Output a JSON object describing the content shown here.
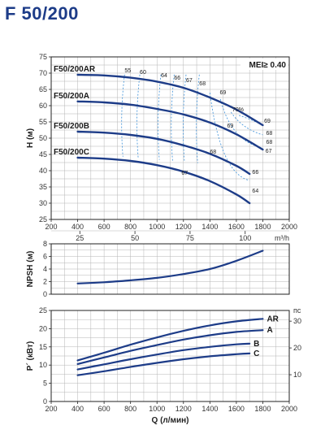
{
  "page": {
    "title": "F 50/200"
  },
  "colors": {
    "curve": "#1d3c88",
    "efficiency": "#3a8fd8",
    "grid": "#b4b4b4",
    "frame": "#222222"
  },
  "chart_data": [
    {
      "type": "line",
      "name": "head",
      "ylabel": "H (м)",
      "ylim": [
        25,
        75
      ],
      "yticks": [
        25,
        30,
        35,
        40,
        45,
        50,
        55,
        60,
        65,
        70,
        75
      ],
      "xlim": [
        200,
        2000
      ],
      "xticks": [
        200,
        400,
        600,
        800,
        1000,
        1200,
        1400,
        1600,
        1800,
        2000
      ],
      "x2_label": "m³/h",
      "x2_ticks": [
        {
          "value": 25,
          "q": 416.7
        },
        {
          "value": 50,
          "q": 833.3
        },
        {
          "value": 75,
          "q": 1250
        },
        {
          "value": 100,
          "q": 1666.7
        }
      ],
      "mei_label": "MEI≥ 0.40",
      "series": [
        {
          "name": "F50/200AR",
          "x": [
            400,
            600,
            800,
            1000,
            1200,
            1400,
            1600,
            1800
          ],
          "y": [
            69.5,
            69.3,
            68.6,
            67.4,
            65.5,
            62.5,
            58.8,
            54.0
          ]
        },
        {
          "name": "F50/200A",
          "x": [
            400,
            600,
            800,
            1000,
            1200,
            1400,
            1600,
            1800
          ],
          "y": [
            61.3,
            61.0,
            60.3,
            59.0,
            57.3,
            54.8,
            51.2,
            46.5
          ]
        },
        {
          "name": "F50/200B",
          "x": [
            400,
            600,
            800,
            1000,
            1200,
            1400,
            1600,
            1700
          ],
          "y": [
            52.0,
            51.7,
            51.0,
            49.8,
            47.8,
            45.2,
            41.5,
            39.0
          ]
        },
        {
          "name": "F50/200C",
          "x": [
            400,
            600,
            800,
            1000,
            1200,
            1400,
            1600,
            1700
          ],
          "y": [
            44.0,
            43.7,
            43.0,
            41.7,
            39.7,
            36.8,
            32.7,
            30.0
          ]
        }
      ],
      "efficiency_labels": [
        {
          "text": "55",
          "x": 755,
          "y": 70.3
        },
        {
          "text": "60",
          "x": 870,
          "y": 69.8
        },
        {
          "text": "64",
          "x": 1030,
          "y": 68.8
        },
        {
          "text": "66",
          "x": 1130,
          "y": 68.0
        },
        {
          "text": "67",
          "x": 1220,
          "y": 67.3
        },
        {
          "text": "68",
          "x": 1320,
          "y": 66.3
        },
        {
          "text": "69",
          "x": 1475,
          "y": 63.5
        },
        {
          "text": "70%",
          "x": 1570,
          "y": 58.2
        },
        {
          "text": "69",
          "x": 1810,
          "y": 54.8
        },
        {
          "text": "68",
          "x": 1825,
          "y": 51.0
        },
        {
          "text": "69",
          "x": 1530,
          "y": 53.2
        },
        {
          "text": "68",
          "x": 1825,
          "y": 48.2
        },
        {
          "text": "67",
          "x": 1820,
          "y": 45.5
        },
        {
          "text": "68",
          "x": 1400,
          "y": 45.2
        },
        {
          "text": "66",
          "x": 1720,
          "y": 39.0
        },
        {
          "text": "67",
          "x": 1185,
          "y": 38.8
        },
        {
          "text": "64",
          "x": 1720,
          "y": 33.3
        }
      ]
    },
    {
      "type": "line",
      "name": "npsh",
      "ylabel": "NPSH (м)",
      "ylim": [
        0,
        8
      ],
      "yticks": [
        0,
        2,
        4,
        6,
        8
      ],
      "xlim": [
        200,
        2000
      ],
      "series": [
        {
          "name": "NPSH",
          "x": [
            400,
            600,
            800,
            1000,
            1200,
            1400,
            1600,
            1800
          ],
          "y": [
            1.7,
            1.9,
            2.2,
            2.6,
            3.2,
            4.0,
            5.3,
            6.9
          ]
        }
      ]
    },
    {
      "type": "line",
      "name": "power",
      "ylabel": "P´ (кВт)",
      "ylim": [
        0,
        25
      ],
      "yticks": [
        0,
        5,
        10,
        15,
        20,
        25
      ],
      "y2_label": "пс",
      "y2_ticks": [
        10,
        20,
        30
      ],
      "xlim": [
        200,
        2000
      ],
      "xticks": [
        200,
        400,
        600,
        800,
        1000,
        1200,
        1400,
        1600,
        1800,
        2000
      ],
      "xlabel": "Q (л/мин)",
      "series": [
        {
          "name": "AR",
          "x": [
            400,
            600,
            800,
            1000,
            1200,
            1400,
            1600,
            1800
          ],
          "y": [
            11.3,
            13.4,
            15.6,
            17.6,
            19.4,
            20.9,
            22.0,
            22.7
          ]
        },
        {
          "name": "A",
          "x": [
            400,
            600,
            800,
            1000,
            1200,
            1400,
            1600,
            1800
          ],
          "y": [
            10.3,
            12.1,
            13.9,
            15.5,
            17.0,
            18.2,
            19.1,
            19.6
          ]
        },
        {
          "name": "B",
          "x": [
            400,
            600,
            800,
            1000,
            1200,
            1400,
            1600,
            1700
          ],
          "y": [
            8.8,
            10.2,
            11.6,
            12.9,
            14.1,
            15.0,
            15.7,
            15.9
          ]
        },
        {
          "name": "C",
          "x": [
            400,
            600,
            800,
            1000,
            1200,
            1400,
            1600,
            1700
          ],
          "y": [
            7.2,
            8.3,
            9.5,
            10.6,
            11.6,
            12.4,
            13.0,
            13.2
          ]
        }
      ]
    }
  ]
}
